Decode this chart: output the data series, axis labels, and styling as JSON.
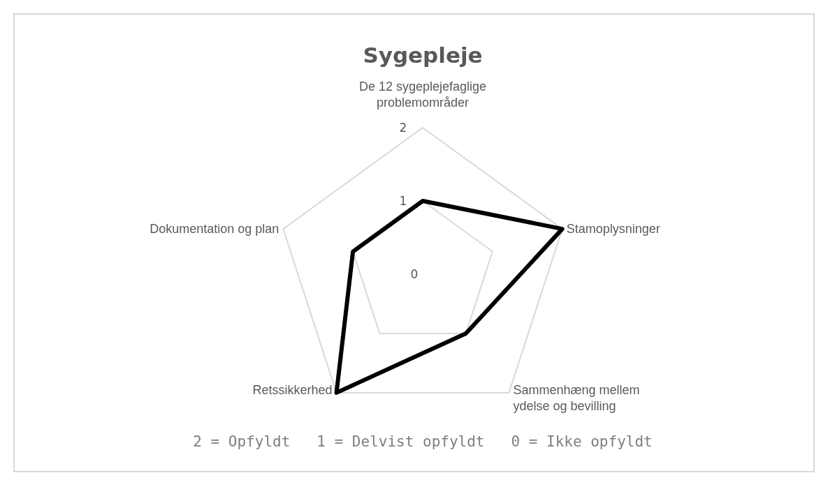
{
  "chart_data": {
    "type": "radar",
    "title": "Sygepleje",
    "categories": [
      "De 12 sygeplejefaglige problemområder",
      "Stamoplysninger",
      "Sammenhæng mellem ydelse og bevilling",
      "Retssikkerhed",
      "Dokumentation og plan"
    ],
    "series": [
      {
        "color": "#000000",
        "values": [
          1,
          2,
          1,
          2,
          1
        ]
      }
    ],
    "ylim": [
      0,
      2
    ],
    "yticks": [
      0,
      1,
      2
    ],
    "grid": true,
    "annotations": [
      "2 = Opfyldt   1 = Delvist opfyldt   0 = Ikke opfyldt"
    ]
  }
}
